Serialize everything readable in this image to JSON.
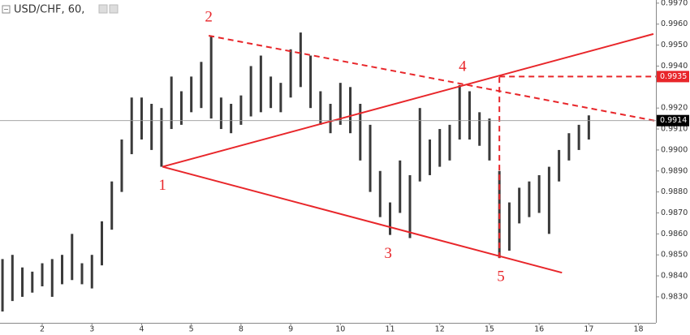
{
  "chart_data": {
    "type": "ohlc",
    "title": "USD/CHF, 60,",
    "x": [
      -0.8,
      -0.6,
      -0.4,
      -0.2,
      0,
      0.2,
      0.4,
      0.6,
      0.8,
      1.0,
      1.2,
      1.4,
      1.6,
      1.8,
      2.0,
      2.2,
      2.4,
      2.6,
      2.8,
      3.0,
      3.2,
      3.4,
      3.6,
      3.8,
      4.0,
      4.2,
      4.4,
      4.6,
      4.8,
      5.0,
      5.2,
      5.4,
      5.6,
      5.8,
      6.0,
      6.2,
      6.4,
      6.6,
      6.8,
      7.0,
      7.2,
      7.4,
      7.6,
      7.8,
      8.0,
      8.2,
      8.4,
      8.6,
      8.8,
      9.0,
      9.2,
      9.4,
      9.6,
      9.8,
      10.0,
      10.2,
      10.4,
      10.6,
      10.8,
      11.0
    ],
    "high": [
      0.9848,
      0.985,
      0.9844,
      0.9842,
      0.9846,
      0.9848,
      0.985,
      0.986,
      0.9846,
      0.985,
      0.9866,
      0.9885,
      0.9905,
      0.9925,
      0.9925,
      0.9922,
      0.992,
      0.9935,
      0.9928,
      0.9935,
      0.9942,
      0.99545,
      0.9925,
      0.9922,
      0.9926,
      0.994,
      0.9945,
      0.9935,
      0.9932,
      0.9948,
      0.9956,
      0.9945,
      0.9928,
      0.9922,
      0.9932,
      0.993,
      0.9922,
      0.9912,
      0.989,
      0.9875,
      0.9895,
      0.9888,
      0.992,
      0.9905,
      0.991,
      0.9912,
      0.9931,
      0.9928,
      0.9918,
      0.9915,
      0.989,
      0.9875,
      0.9882,
      0.9885,
      0.9888,
      0.9892,
      0.99,
      0.9908,
      0.9912,
      0.99165
    ],
    "low": [
      0.9823,
      0.9828,
      0.983,
      0.9832,
      0.9835,
      0.983,
      0.9836,
      0.9838,
      0.9836,
      0.9834,
      0.9845,
      0.9862,
      0.988,
      0.9898,
      0.9905,
      0.99,
      0.9892,
      0.991,
      0.9912,
      0.9918,
      0.992,
      0.9915,
      0.991,
      0.9908,
      0.9912,
      0.9916,
      0.9918,
      0.992,
      0.9918,
      0.9925,
      0.993,
      0.992,
      0.9912,
      0.9908,
      0.9912,
      0.9908,
      0.9895,
      0.988,
      0.9868,
      0.98595,
      0.987,
      0.9858,
      0.9885,
      0.9888,
      0.9892,
      0.9895,
      0.9905,
      0.9905,
      0.9902,
      0.9895,
      0.98485,
      0.9852,
      0.9865,
      0.9868,
      0.987,
      0.986,
      0.9885,
      0.9895,
      0.99,
      0.9905
    ],
    "color": "#3a3a3a",
    "xlim": [
      -0.85,
      12.35
    ],
    "xticks": [
      {
        "value": 0,
        "label": "2"
      },
      {
        "value": 1,
        "label": "3"
      },
      {
        "value": 2,
        "label": "4"
      },
      {
        "value": 3,
        "label": "5"
      },
      {
        "value": 4,
        "label": "8"
      },
      {
        "value": 5,
        "label": "9"
      },
      {
        "value": 6,
        "label": "10"
      },
      {
        "value": 7,
        "label": "11"
      },
      {
        "value": 8,
        "label": "12"
      },
      {
        "value": 9,
        "label": "15"
      },
      {
        "value": 10,
        "label": "16"
      },
      {
        "value": 11,
        "label": "17"
      },
      {
        "value": 12,
        "label": "18"
      }
    ],
    "ylim": [
      0.98176,
      0.99715
    ],
    "yticks": [
      {
        "value": 0.983,
        "label": "0.9830"
      },
      {
        "value": 0.984,
        "label": "0.9840"
      },
      {
        "value": 0.985,
        "label": "0.9850"
      },
      {
        "value": 0.986,
        "label": "0.9860"
      },
      {
        "value": 0.987,
        "label": "0.9870"
      },
      {
        "value": 0.988,
        "label": "0.9880"
      },
      {
        "value": 0.989,
        "label": "0.9890"
      },
      {
        "value": 0.99,
        "label": "0.9900"
      },
      {
        "value": 0.991,
        "label": "0.9910"
      },
      {
        "value": 0.992,
        "label": "0.9920"
      },
      {
        "value": 0.994,
        "label": "0.9940"
      },
      {
        "value": 0.995,
        "label": "0.9950"
      },
      {
        "value": 0.996,
        "label": "0.9960"
      },
      {
        "value": 0.997,
        "label": "0.9970"
      }
    ],
    "price_lines": [
      {
        "value": 0.9914,
        "label": "0.9914",
        "color": "#000000"
      },
      {
        "value": 0.9935,
        "label": "0.9935",
        "color": "#e8262a"
      }
    ],
    "trend_color": "#e8262a",
    "trend_lines": [
      {
        "x": [
          2.42,
          12.3
        ],
        "y": [
          0.9892,
          0.99553
        ],
        "dashed": false
      },
      {
        "x": [
          2.42,
          10.46
        ],
        "y": [
          0.9892,
          0.98415
        ],
        "dashed": false
      },
      {
        "x": [
          3.35,
          12.43
        ],
        "y": [
          0.99545,
          0.99135
        ],
        "dashed": true
      },
      {
        "x": [
          9.2,
          9.2
        ],
        "y": [
          0.98485,
          0.99355
        ],
        "dashed": true
      },
      {
        "x": [
          9.2,
          12.35
        ],
        "y": [
          0.9935,
          0.9935
        ],
        "dashed": true
      }
    ],
    "annotations": [
      {
        "text": "1",
        "x": 2.42,
        "y": 0.9892,
        "position": "below"
      },
      {
        "text": "2",
        "x": 3.35,
        "y": 0.99545,
        "position": "above"
      },
      {
        "text": "3",
        "x": 6.96,
        "y": 0.98595,
        "position": "below"
      },
      {
        "text": "4",
        "x": 8.46,
        "y": 0.99309,
        "position": "above"
      },
      {
        "text": "5",
        "x": 9.23,
        "y": 0.98485,
        "position": "below"
      }
    ]
  }
}
